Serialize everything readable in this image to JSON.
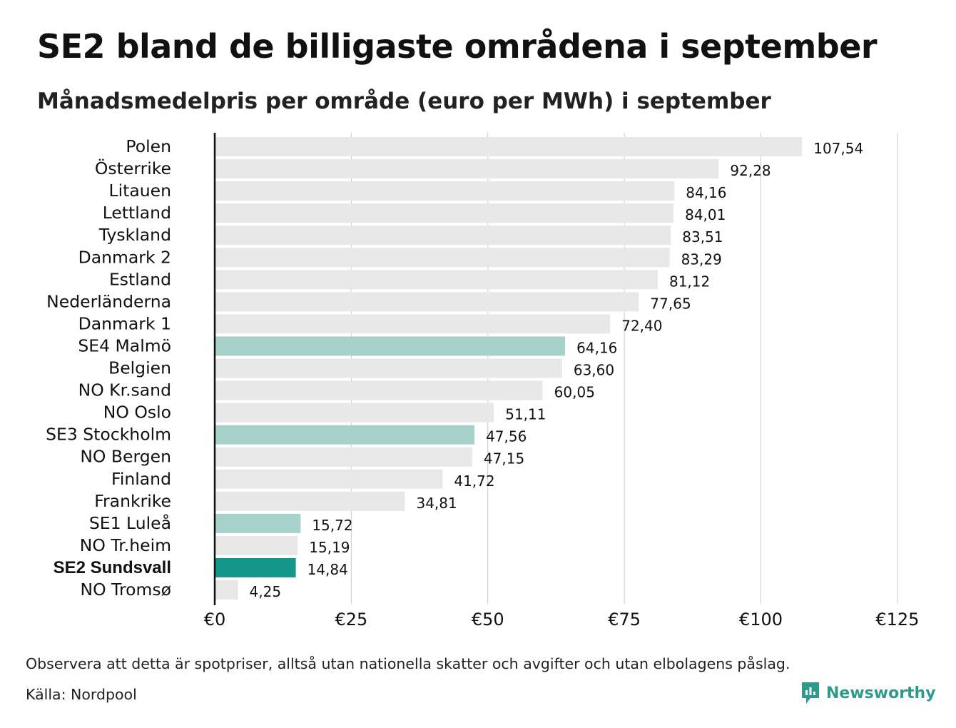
{
  "header": {
    "title": "SE2 bland de billigaste områdena i september",
    "subtitle": "Månadsmedelpris per område (euro per MWh) i september"
  },
  "footer": {
    "note": "Observera att detta är spotpriser, alltså utan nationella skatter och avgifter och utan elbolagens påslag.",
    "source": "Källa: Nordpool",
    "brand": "Newsworthy",
    "brand_icon": "newsworthy-logo-icon"
  },
  "colors": {
    "default_bar": "#e8e8e8",
    "highlight_bar": "#a7d1cb",
    "focus_bar": "#14968a",
    "grid": "#cccccc",
    "axis": "#111111",
    "brand": "#2f9a8c"
  },
  "chart_data": {
    "type": "bar",
    "orientation": "horizontal",
    "title": "SE2 bland de billigaste områdena i september",
    "subtitle": "Månadsmedelpris per område (euro per MWh) i september",
    "xlabel": "",
    "ylabel": "",
    "xlim": [
      0,
      125
    ],
    "grid": true,
    "x_ticks": [
      0,
      25,
      50,
      75,
      100,
      125
    ],
    "x_tick_labels": [
      "€0",
      "€25",
      "€50",
      "€75",
      "€100",
      "€125"
    ],
    "categories": [
      "Polen",
      "Österrike",
      "Litauen",
      "Lettland",
      "Tyskland",
      "Danmark 2",
      "Estland",
      "Nederländerna",
      "Danmark 1",
      "SE4 Malmö",
      "Belgien",
      "NO Kr.sand",
      "NO Oslo",
      "SE3 Stockholm",
      "NO Bergen",
      "Finland",
      "Frankrike",
      "SE1 Luleå",
      "NO Tr.heim",
      "SE2 Sundsvall",
      "NO Tromsø"
    ],
    "values": [
      107.54,
      92.28,
      84.16,
      84.01,
      83.51,
      83.29,
      81.12,
      77.65,
      72.4,
      64.16,
      63.6,
      60.05,
      51.11,
      47.56,
      47.15,
      41.72,
      34.81,
      15.72,
      15.19,
      14.84,
      4.25
    ],
    "value_labels": [
      "107,54",
      "92,28",
      "84,16",
      "84,01",
      "83,51",
      "83,29",
      "81,12",
      "77,65",
      "72,40",
      "64,16",
      "63,60",
      "60,05",
      "51,11",
      "47,56",
      "47,15",
      "41,72",
      "34,81",
      "15,72",
      "15,19",
      "14,84",
      "4,25"
    ],
    "highlight": [
      "SE4 Malmö",
      "SE3 Stockholm",
      "SE1 Luleå"
    ],
    "focus": "SE2 Sundsvall"
  }
}
